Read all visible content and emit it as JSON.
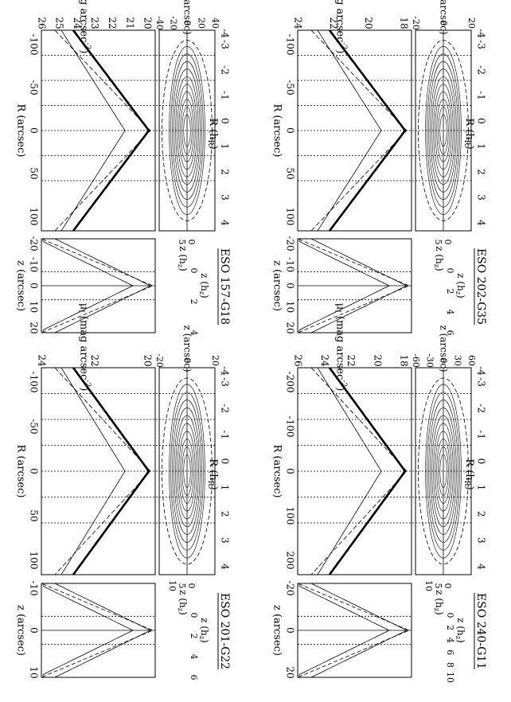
{
  "figure": {
    "panels": [
      {
        "name": "ESO 157-G18",
        "map_ticks": [
          "40",
          "20",
          "0",
          "-20",
          "-40"
        ],
        "map_zlabel": "z (arcsec)",
        "hz_ticks": [
          "0",
          "5"
        ],
        "hz_label": "z (h",
        "hz_sub": "z",
        "hz_close": ")",
        "hR_ticks": [
          "-3",
          "-2",
          "-1",
          "0",
          "1",
          "2",
          "3",
          "4"
        ],
        "hR_minus4": "-4",
        "hR_label": "R (h",
        "hR_sub": "R",
        "hR_close": ")",
        "mu_ticks": [
          "26",
          "25",
          "24",
          "23",
          "22",
          "21",
          "20"
        ],
        "mu_label": "μ",
        "mu_sub": "I",
        "mu_unit": " (mag arcsec",
        "mu_exp": "-2",
        "mu_close": ")",
        "R_ticks": [
          "-100",
          "-50",
          "0",
          "50",
          "100"
        ],
        "R_label": "R (arcsec)",
        "vz_ticks": [
          "-20",
          "-10",
          "0",
          "10",
          "20"
        ],
        "vz_label": "z (arcsec)",
        "vhz_ticks": [
          "0",
          "2",
          "4"
        ],
        "vhz_label": "z (h",
        "vhz_sub": "z",
        "vhz_close": ")"
      },
      {
        "name": "ESO 201-G22",
        "map_ticks": [
          "20",
          "0",
          "-20"
        ],
        "map_zlabel": "z (arcsec)",
        "hz_ticks": [
          "0",
          "5",
          "10"
        ],
        "hz_label": "z (h",
        "hz_sub": "z",
        "hz_close": ")",
        "hR_ticks": [
          "-3",
          "-2",
          "-1",
          "0",
          "1",
          "2",
          "3",
          "4"
        ],
        "hR_minus4": "-4",
        "hR_label": "R (h",
        "hR_sub": "R",
        "hR_close": ")",
        "mu_ticks": [
          "24",
          "22",
          "20"
        ],
        "mu_label": "μ",
        "mu_sub": "I",
        "mu_unit": " (mag arcsec",
        "mu_exp": "-2",
        "mu_close": ")",
        "R_ticks": [
          "-100",
          "-50",
          "0",
          "50",
          "100"
        ],
        "R_label": "R (arcsec)",
        "vz_ticks": [
          "-10",
          "0",
          "10"
        ],
        "vz_label": "z (arcsec)",
        "vhz_ticks": [
          "0",
          "2",
          "4",
          "6"
        ],
        "vhz_label": "z (h",
        "vhz_sub": "z",
        "vhz_close": ")"
      },
      {
        "name": "ESO 202-G35",
        "map_ticks": [
          "20",
          "0",
          "-20"
        ],
        "map_zlabel": "z (arcsec)",
        "hz_ticks": [
          "0",
          "5"
        ],
        "hz_label": "z (h",
        "hz_sub": "z",
        "hz_close": ")",
        "hR_ticks": [
          "-3",
          "-2",
          "-1",
          "0",
          "1",
          "2",
          "3",
          "4"
        ],
        "hR_minus4": "-4",
        "hR_label": "R (h",
        "hR_sub": "R",
        "hR_close": ")",
        "mu_ticks": [
          "24",
          "22",
          "20",
          "18"
        ],
        "mu_label": "μ",
        "mu_sub": "I",
        "mu_unit": " (mag arcsec",
        "mu_exp": "-2",
        "mu_close": ")",
        "R_ticks": [
          "-100",
          "-50",
          "0",
          "50",
          "100"
        ],
        "R_label": "R (arcsec)",
        "vz_ticks": [
          "-20",
          "-10",
          "0",
          "10",
          "20"
        ],
        "vz_label": "z (arcsec)",
        "vhz_ticks": [
          "0",
          "2",
          "4",
          "6"
        ],
        "vhz_label": "z (h",
        "vhz_sub": "z",
        "vhz_close": ")"
      },
      {
        "name": "ESO 240-G11",
        "map_ticks": [
          "60",
          "30",
          "0",
          "-30",
          "-60"
        ],
        "map_zlabel": "z (arcsec)",
        "hz_ticks": [
          "0",
          "5",
          "10"
        ],
        "hz_label": "z (h",
        "hz_sub": "z",
        "hz_close": ")",
        "hR_ticks": [
          "-3",
          "-2",
          "-1",
          "0",
          "1",
          "2",
          "3",
          "4"
        ],
        "hR_minus4": "-4",
        "hR_label": "R (h",
        "hR_sub": "R",
        "hR_close": ")",
        "mu_ticks": [
          "26",
          "24",
          "22",
          "20",
          "18"
        ],
        "mu_label": "μ",
        "mu_sub": "I",
        "mu_unit": " (mag arcsec",
        "mu_exp": "-2",
        "mu_close": ")",
        "R_ticks": [
          "-200",
          "-100",
          "0",
          "100",
          "200"
        ],
        "R_label": "R (arcsec)",
        "vz_ticks": [
          "-20",
          "0",
          "20"
        ],
        "vz_label": "z (arcsec)",
        "vhz_ticks": [
          "0",
          "2",
          "4",
          "6",
          "8",
          "10"
        ],
        "vhz_label": "z (h",
        "vhz_sub": "z",
        "vhz_close": ")"
      }
    ]
  }
}
